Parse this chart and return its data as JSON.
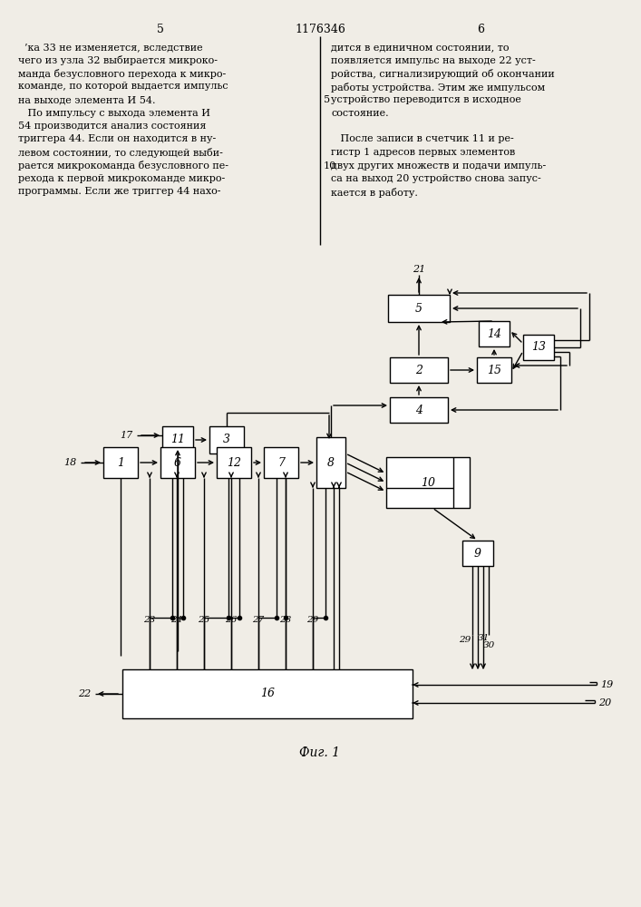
{
  "title": "1176346",
  "fig_caption": "Фиг. 1",
  "page_left": "5",
  "page_right": "6",
  "background": "#f0ede6",
  "left_lines": [
    "  ’ка 33 не изменяется, вследствие",
    "чего из узла 32 выбирается микроко-",
    "манда безусловного перехода к микро-",
    "команде, по которой выдается импульс",
    "на выходе элемента И 54.",
    "   По импульсу с выхода элемента И",
    "54 производится анализ состояния",
    "триггера 44. Если он находится в ну-",
    "левом состоянии, то следующей выби-",
    "рается микрокоманда безусловного пе-",
    "рехода к первой микрокоманде микро-",
    "программы. Если же триггер 44 нахо-"
  ],
  "right_lines": [
    "дится в единичном состоянии, то",
    "появляется импульс на выходе 22 уст-",
    "ройства, сигнализирующий об окончании",
    "работы устройства. Этим же импульсом",
    "устройство переводится в исходное",
    "состояние.",
    "",
    "   После записи в счетчик 11 и ре-",
    "гистр 1 адресов первых элементов",
    "двух других множеств и подачи импуль-",
    "са на выход 20 устройство снова запус-",
    "кается в работу."
  ],
  "linenums": {
    "4": "5",
    "9": "10"
  }
}
